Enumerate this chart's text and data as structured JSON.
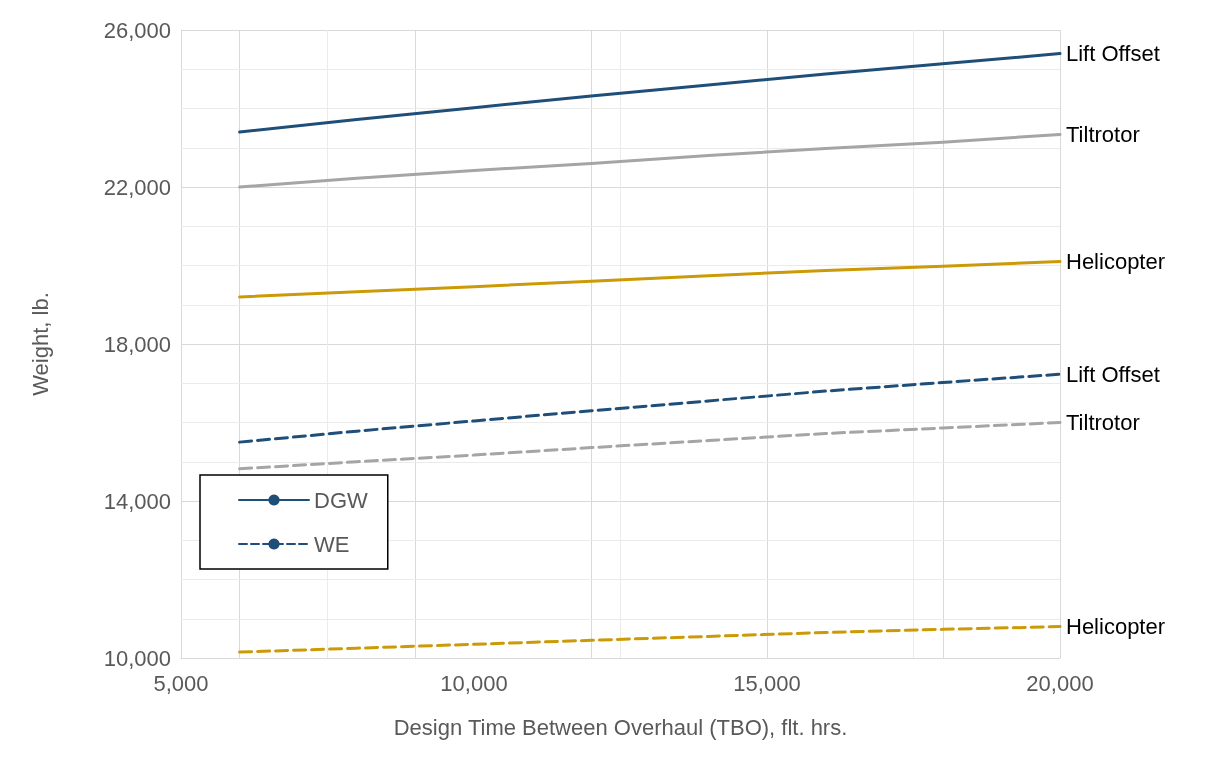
{
  "chart_data": {
    "type": "line",
    "xlabel": "Design Time Between Overhaul (TBO), flt. hrs.",
    "ylabel": "Weight, lb.",
    "x": [
      6000,
      8000,
      10000,
      12000,
      14000,
      16000,
      18000,
      20000
    ],
    "series": [
      {
        "name": "Lift Offset",
        "color": "#1f4e79",
        "line_style": "solid",
        "values": [
          23400,
          23720,
          24020,
          24320,
          24600,
          24880,
          25140,
          25400
        ]
      },
      {
        "name": "Tiltrotor",
        "color": "#a5a5a5",
        "line_style": "solid",
        "values": [
          22000,
          22220,
          22420,
          22600,
          22800,
          22980,
          23140,
          23340
        ]
      },
      {
        "name": "Helicopter",
        "color": "#cc9a06",
        "line_style": "solid",
        "values": [
          19200,
          19330,
          19460,
          19600,
          19740,
          19870,
          19980,
          20100
        ]
      },
      {
        "name": "Lift Offset",
        "color": "#1f4e79",
        "line_style": "dashed",
        "values": [
          15500,
          15780,
          16040,
          16300,
          16550,
          16800,
          17020,
          17230
        ]
      },
      {
        "name": "Tiltrotor",
        "color": "#a5a5a5",
        "line_style": "dashed",
        "values": [
          14820,
          15000,
          15170,
          15360,
          15540,
          15720,
          15860,
          16000
        ]
      },
      {
        "name": "Helicopter",
        "color": "#cc9a06",
        "line_style": "dashed",
        "values": [
          10150,
          10250,
          10350,
          10450,
          10550,
          10650,
          10730,
          10800
        ]
      },
      {
        "name": "DGW",
        "color": "#1f4e79",
        "line_style": "solid",
        "values": [
          null,
          null,
          null,
          null,
          null,
          null,
          null,
          null
        ]
      },
      {
        "name": "WE",
        "color": "#1f4e79",
        "line_style": "dashed",
        "values": [
          null,
          null,
          null,
          null,
          null,
          null,
          null,
          null
        ]
      }
    ],
    "xlim": [
      5000,
      20000
    ],
    "xticks": [
      {
        "value": 5000,
        "label": "5,000"
      },
      {
        "value": 7500,
        "label": null
      },
      {
        "value": 10000,
        "label": "10,000"
      },
      {
        "value": 12500,
        "label": null
      },
      {
        "value": 15000,
        "label": "15,000"
      },
      {
        "value": 17500,
        "label": null
      },
      {
        "value": 20000,
        "label": "20,000"
      }
    ],
    "ylim": [
      10000,
      26000
    ],
    "yticks": [
      {
        "value": 10000,
        "label": "10,000"
      },
      {
        "value": 11000,
        "label": null
      },
      {
        "value": 12000,
        "label": null
      },
      {
        "value": 13000,
        "label": null
      },
      {
        "value": 14000,
        "label": "14,000"
      },
      {
        "value": 15000,
        "label": null
      },
      {
        "value": 16000,
        "label": null
      },
      {
        "value": 17000,
        "label": null
      },
      {
        "value": 18000,
        "label": "18,000"
      },
      {
        "value": 19000,
        "label": null
      },
      {
        "value": 20000,
        "label": null
      },
      {
        "value": 21000,
        "label": null
      },
      {
        "value": 22000,
        "label": "22,000"
      },
      {
        "value": 23000,
        "label": null
      },
      {
        "value": 24000,
        "label": null
      },
      {
        "value": 25000,
        "label": null
      },
      {
        "value": 26000,
        "label": "26,000"
      }
    ],
    "grid": true,
    "legend": "bottom left",
    "marker": "none"
  }
}
